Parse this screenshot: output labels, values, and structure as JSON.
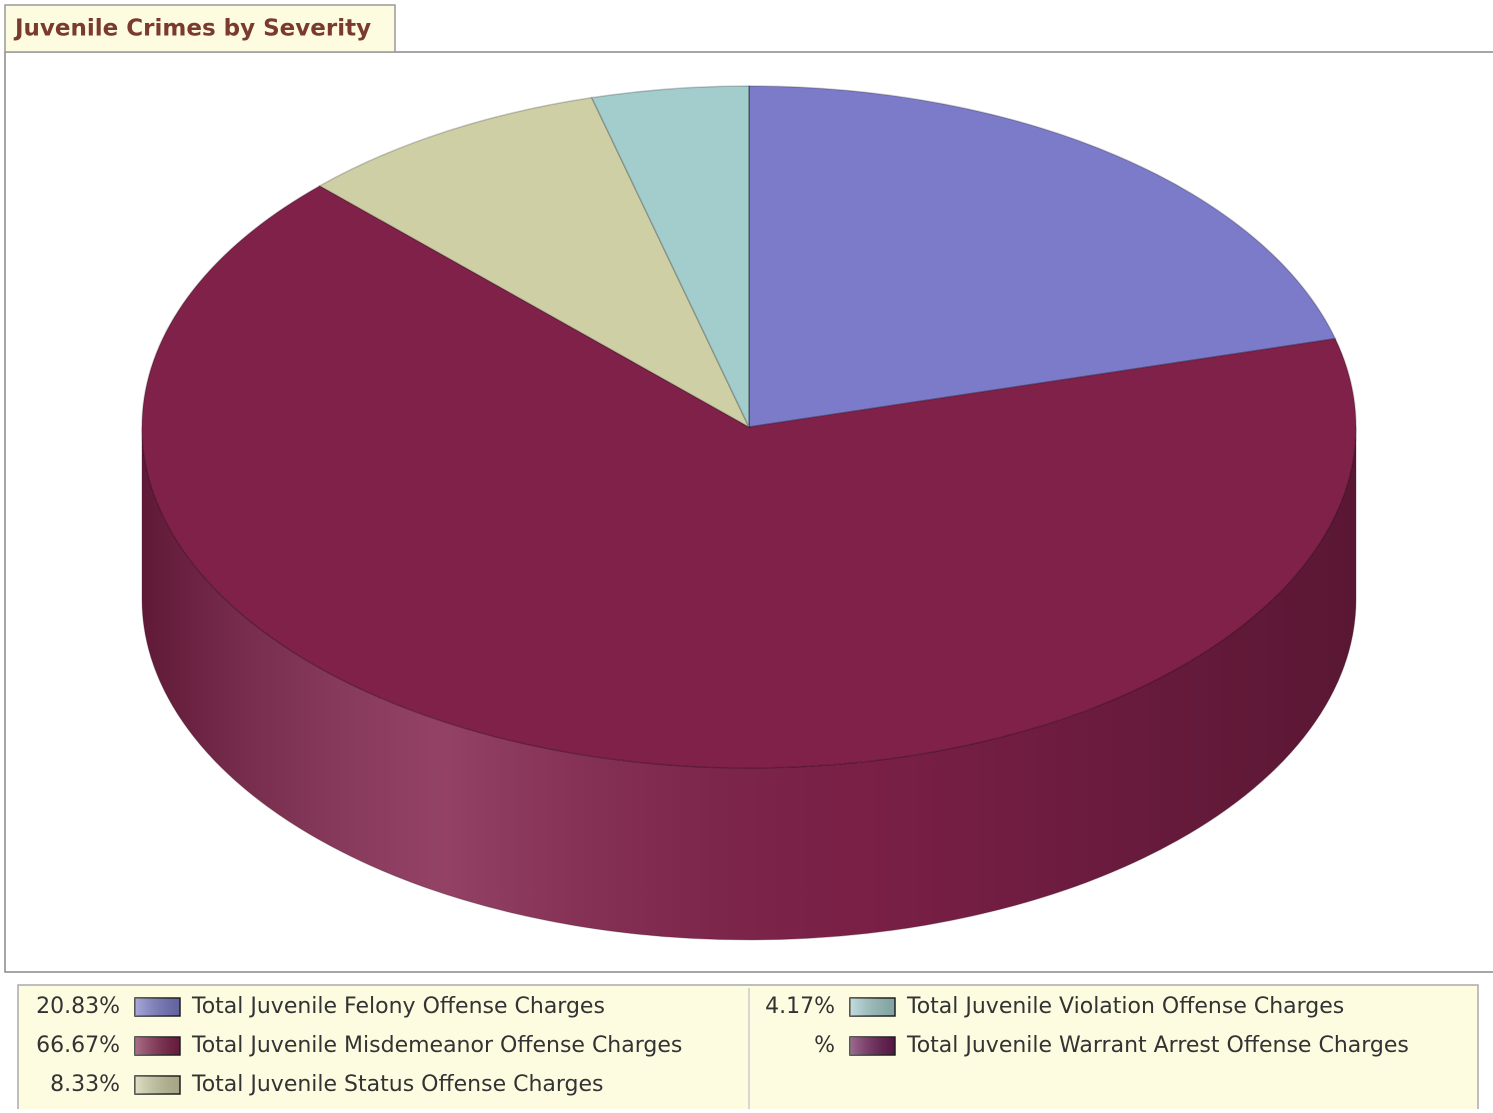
{
  "chart_data": {
    "type": "pie3d",
    "title": "Juvenile Crimes by Severity",
    "categories": [
      "Total Juvenile Felony Offense Charges",
      "Total Juvenile Misdemeanor Offense Charges",
      "Total Juvenile Status Offense Charges",
      "Total Juvenile Violation Offense Charges",
      "Total Juvenile Warrant Arrest Offense Charges"
    ],
    "values": [
      20.83,
      66.67,
      8.33,
      4.17,
      0
    ],
    "value_labels": [
      "20.83%",
      "66.67%",
      "8.33%",
      "4.17%",
      "%"
    ],
    "colors": [
      "#7b7bc9",
      "#80214a",
      "#cfcfa6",
      "#a3cccc",
      "#6b1b55"
    ]
  }
}
